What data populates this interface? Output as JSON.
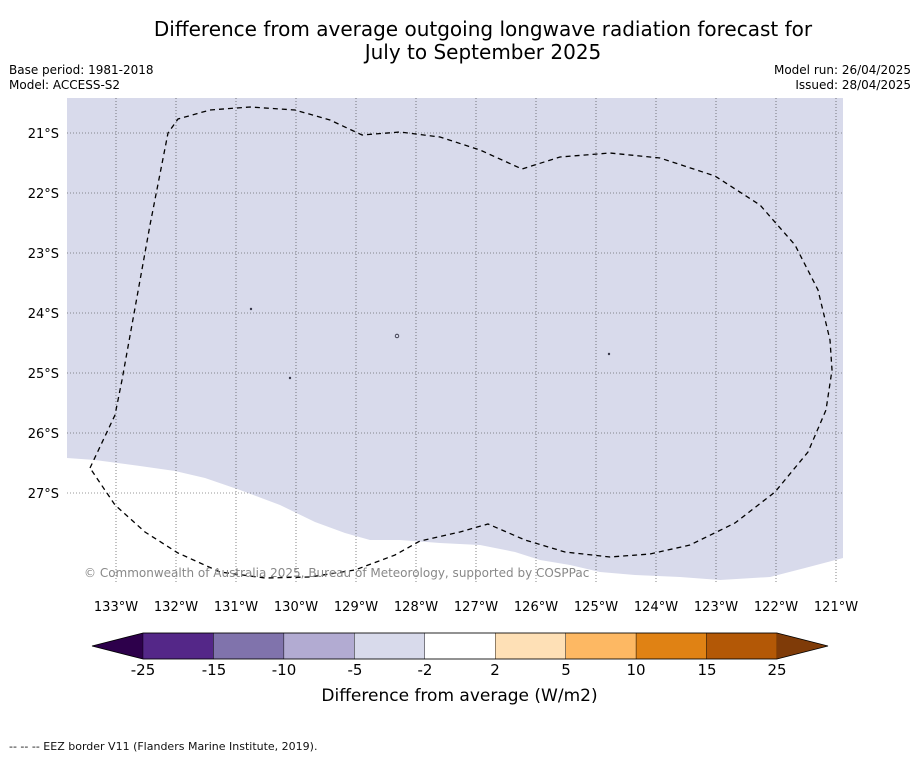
{
  "title_line1": "Difference from average outgoing longwave radiation forecast for",
  "title_line2": "July to September 2025",
  "base_period": "Base period: 1981-2018",
  "model": "Model: ACCESS-S2",
  "model_run": "Model run: 26/04/2025",
  "issued": "Issued: 28/04/2025",
  "copyright": "© Commonwealth of Australia 2025, Bureau of Meteorology, supported by COSPPac",
  "lat_labels": [
    "21°S",
    "22°S",
    "23°S",
    "24°S",
    "25°S",
    "26°S",
    "27°S"
  ],
  "lon_labels": [
    "133°W",
    "132°W",
    "131°W",
    "130°W",
    "129°W",
    "128°W",
    "127°W",
    "126°W",
    "125°W",
    "124°W",
    "123°W",
    "122°W",
    "121°W"
  ],
  "colorbar": {
    "label": "Difference from average (W/m2)",
    "ticks": [
      "-25",
      "-15",
      "-10",
      "-5",
      "-2",
      "2",
      "5",
      "10",
      "15",
      "25"
    ],
    "colors": [
      "#2d004b",
      "#542788",
      "#8073ac",
      "#b2abd2",
      "#d8daeb",
      "#ffffff",
      "#fee0b6",
      "#fdb863",
      "#e08214",
      "#b35806",
      "#7f3b08"
    ]
  },
  "map": {
    "region_fill_color": "#d8daeb",
    "region_category": "-5 to -2",
    "background_color": "#ffffff"
  },
  "footnote": "--  --  -- EEZ border V11 (Flanders Marine Institute, 2019)."
}
